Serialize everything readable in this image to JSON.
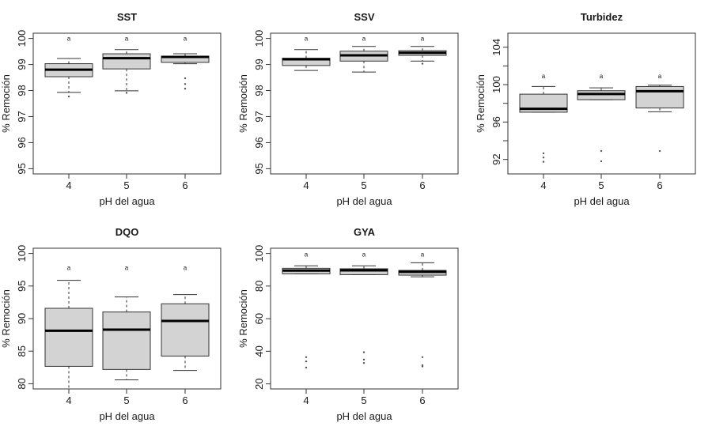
{
  "chart_data": [
    {
      "type": "box",
      "title": "SST",
      "xlabel": "pH del agua",
      "ylabel": "% Remoción",
      "categories": [
        "4",
        "5",
        "6"
      ],
      "ylim": [
        94.8,
        100.2
      ],
      "yticks": [
        95,
        96,
        97,
        98,
        99,
        100
      ],
      "yticklabels": [
        "95",
        "96",
        "97",
        "98",
        "99",
        "100"
      ],
      "group_letters": [
        "a",
        "a",
        "a"
      ],
      "letter_y": 100,
      "boxes": [
        {
          "whisker_low": 97.93,
          "q1": 98.53,
          "median": 98.8,
          "q3": 99.03,
          "whisker_high": 99.23,
          "outliers": [
            97.77
          ]
        },
        {
          "whisker_low": 97.99,
          "q1": 98.83,
          "median": 99.24,
          "q3": 99.41,
          "whisker_high": 99.57,
          "outliers": [
            97.91
          ]
        },
        {
          "whisker_low": 99.03,
          "q1": 99.08,
          "median": 99.29,
          "q3": 99.32,
          "whisker_high": 99.41,
          "outliers": [
            98.47,
            98.25,
            98.07
          ]
        }
      ]
    },
    {
      "type": "box",
      "title": "SSV",
      "xlabel": "pH del agua",
      "ylabel": "% Remoción",
      "categories": [
        "4",
        "5",
        "6"
      ],
      "ylim": [
        94.8,
        100.2
      ],
      "yticks": [
        95,
        96,
        97,
        98,
        99,
        100
      ],
      "yticklabels": [
        "95",
        "96",
        "97",
        "98",
        "99",
        "100"
      ],
      "group_letters": [
        "a",
        "a",
        "a"
      ],
      "letter_y": 100,
      "boxes": [
        {
          "whisker_low": 98.77,
          "q1": 98.96,
          "median": 99.2,
          "q3": 99.24,
          "whisker_high": 99.57,
          "outliers": []
        },
        {
          "whisker_low": 98.71,
          "q1": 99.13,
          "median": 99.35,
          "q3": 99.51,
          "whisker_high": 99.69,
          "outliers": []
        },
        {
          "whisker_low": 99.13,
          "q1": 99.35,
          "median": 99.45,
          "q3": 99.53,
          "whisker_high": 99.69,
          "outliers": [
            99.03
          ]
        }
      ]
    },
    {
      "type": "box",
      "title": "Turbidez",
      "xlabel": "pH del agua",
      "ylabel": "% Remoción",
      "categories": [
        "4",
        "5",
        "6"
      ],
      "ylim": [
        90.45,
        105.5
      ],
      "yticks": [
        92,
        94,
        96,
        98,
        100,
        102,
        104
      ],
      "yticklabels": [
        "92",
        "",
        "96",
        "",
        "100",
        "",
        "104"
      ],
      "group_letters": [
        "a",
        "a",
        "a"
      ],
      "letter_y": 100.93,
      "boxes": [
        {
          "whisker_low": 97.05,
          "q1": 97.05,
          "median": 97.42,
          "q3": 98.98,
          "whisker_high": 99.8,
          "outliers": [
            92.65,
            92.2,
            91.75
          ]
        },
        {
          "whisker_low": 98.39,
          "q1": 98.39,
          "median": 99.0,
          "q3": 99.35,
          "whisker_high": 99.66,
          "outliers": [
            92.9,
            91.8
          ]
        },
        {
          "whisker_low": 97.1,
          "q1": 97.5,
          "median": 99.3,
          "q3": 99.8,
          "whisker_high": 99.94,
          "outliers": [
            92.9
          ]
        }
      ]
    },
    {
      "type": "box",
      "title": "DQO",
      "xlabel": "pH del agua",
      "ylabel": "% Remoción",
      "categories": [
        "4",
        "5",
        "6"
      ],
      "ylim": [
        79.2,
        100.8
      ],
      "yticks": [
        80,
        85,
        90,
        95,
        100
      ],
      "yticklabels": [
        "80",
        "85",
        "90",
        "95",
        "100"
      ],
      "group_letters": [
        "a",
        "a",
        "a"
      ],
      "letter_y": 97.85,
      "boxes": [
        {
          "whisker_low": 79.0,
          "q1": 82.67,
          "median": 88.14,
          "q3": 91.58,
          "whisker_high": 95.87,
          "outliers": []
        },
        {
          "whisker_low": 80.6,
          "q1": 82.19,
          "median": 88.3,
          "q3": 91.01,
          "whisker_high": 93.32,
          "outliers": []
        },
        {
          "whisker_low": 82.03,
          "q1": 84.25,
          "median": 89.64,
          "q3": 92.27,
          "whisker_high": 93.68,
          "outliers": []
        }
      ]
    },
    {
      "type": "box",
      "title": "GYA",
      "xlabel": "pH del agua",
      "ylabel": "% Remoción",
      "categories": [
        "4",
        "5",
        "6"
      ],
      "ylim": [
        16.9,
        103.2
      ],
      "yticks": [
        20,
        40,
        60,
        80,
        100
      ],
      "yticklabels": [
        "20",
        "40",
        "60",
        "80",
        "100"
      ],
      "group_letters": [
        "a",
        "a",
        "a"
      ],
      "letter_y": 99.5,
      "boxes": [
        {
          "whisker_low": 87.5,
          "q1": 87.5,
          "median": 89.5,
          "q3": 90.9,
          "whisker_high": 92.4,
          "outliers": [
            36.4,
            33.8,
            30.0
          ]
        },
        {
          "whisker_low": 87.0,
          "q1": 87.0,
          "median": 89.6,
          "q3": 90.6,
          "whisker_high": 92.4,
          "outliers": [
            39.4,
            34.9,
            32.8
          ]
        },
        {
          "whisker_low": 85.7,
          "q1": 86.7,
          "median": 88.7,
          "q3": 89.6,
          "whisker_high": 94.3,
          "outliers": [
            36.4,
            31.4,
            30.7
          ]
        }
      ]
    }
  ],
  "colors": {
    "box_fill": "#d3d3d3",
    "line": "#333333",
    "outlier": "#555555"
  }
}
